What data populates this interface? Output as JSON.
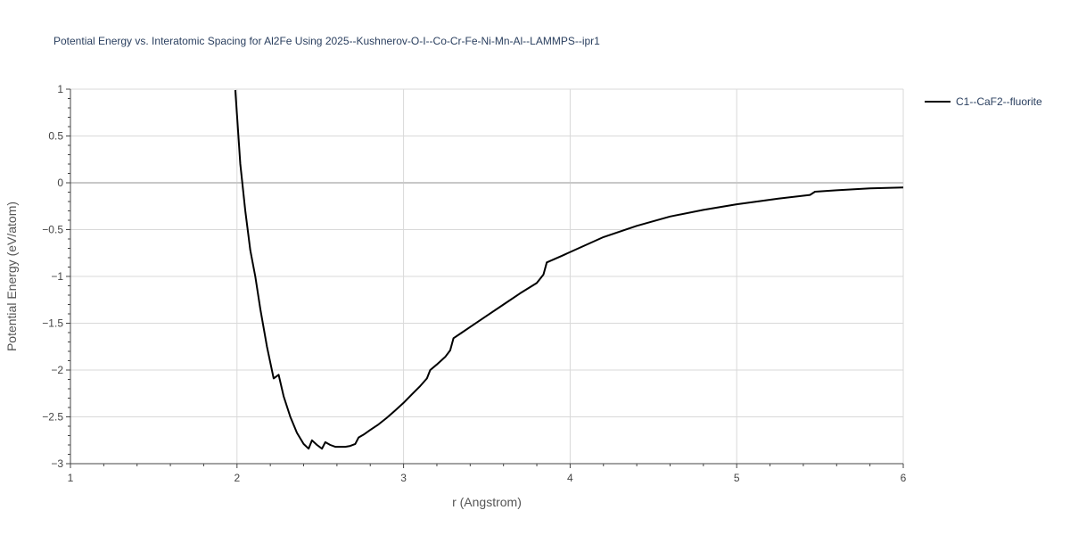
{
  "chart_data": {
    "type": "line",
    "title": "Potential Energy vs. Interatomic Spacing for Al2Fe Using 2025--Kushnerov-O-I--Co-Cr-Fe-Ni-Mn-Al--LAMMPS--ipr1",
    "xlabel": "r (Angstrom)",
    "ylabel": "Potential Energy (eV/atom)",
    "xlim": [
      1,
      6
    ],
    "ylim": [
      -3,
      1
    ],
    "x_ticks": [
      "1",
      "2",
      "3",
      "4",
      "5",
      "6"
    ],
    "y_ticks": [
      "1",
      "0.5",
      "0",
      "−0.5",
      "−1",
      "−1.5",
      "−2",
      "−2.5",
      "−3"
    ],
    "x_tick_values": [
      1,
      2,
      3,
      4,
      5,
      6
    ],
    "y_tick_values": [
      1,
      0.5,
      0,
      -0.5,
      -1,
      -1.5,
      -2,
      -2.5,
      -3
    ],
    "grid": true,
    "legend_position": "top-right",
    "series": [
      {
        "name": "C1--CaF2--fluorite",
        "color": "#000000",
        "x": [
          1.99,
          2.02,
          2.05,
          2.08,
          2.11,
          2.14,
          2.18,
          2.22,
          2.25,
          2.28,
          2.32,
          2.36,
          2.4,
          2.43,
          2.45,
          2.48,
          2.51,
          2.53,
          2.56,
          2.59,
          2.62,
          2.65,
          2.68,
          2.71,
          2.73,
          2.76,
          2.8,
          2.85,
          2.9,
          2.95,
          3.0,
          3.05,
          3.1,
          3.14,
          3.16,
          3.2,
          3.25,
          3.28,
          3.3,
          3.35,
          3.4,
          3.5,
          3.6,
          3.7,
          3.8,
          3.84,
          3.86,
          3.95,
          4.05,
          4.2,
          4.4,
          4.6,
          4.8,
          5.0,
          5.25,
          5.44,
          5.47,
          5.6,
          5.8,
          6.0
        ],
        "y": [
          0.99,
          0.2,
          -0.3,
          -0.72,
          -1.0,
          -1.35,
          -1.75,
          -2.09,
          -2.05,
          -2.28,
          -2.5,
          -2.67,
          -2.79,
          -2.84,
          -2.75,
          -2.8,
          -2.84,
          -2.77,
          -2.8,
          -2.82,
          -2.82,
          -2.82,
          -2.81,
          -2.79,
          -2.72,
          -2.69,
          -2.64,
          -2.58,
          -2.51,
          -2.43,
          -2.35,
          -2.26,
          -2.17,
          -2.09,
          -2.0,
          -1.94,
          -1.86,
          -1.79,
          -1.66,
          -1.6,
          -1.54,
          -1.42,
          -1.3,
          -1.18,
          -1.07,
          -0.98,
          -0.85,
          -0.78,
          -0.7,
          -0.58,
          -0.46,
          -0.36,
          -0.29,
          -0.23,
          -0.17,
          -0.13,
          -0.095,
          -0.08,
          -0.06,
          -0.05
        ]
      }
    ]
  }
}
